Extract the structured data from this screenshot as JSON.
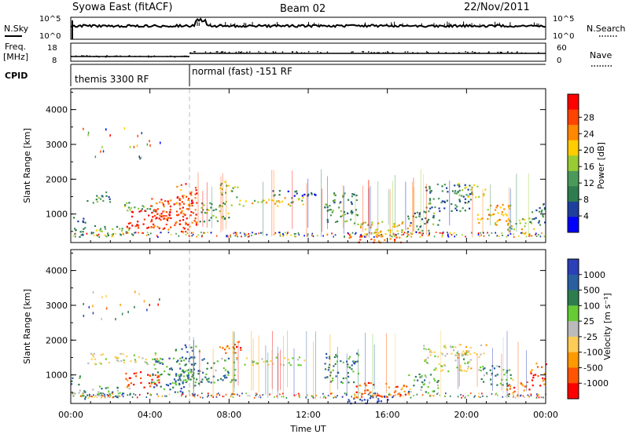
{
  "header": {
    "station": "Syowa East (fitACF)",
    "beam": "Beam 02",
    "date": "22/Nov/2011"
  },
  "top_panel": {
    "left_label": "N.Sky",
    "right_label": "N.Search",
    "left_ticks": [
      "10^5",
      "10^0"
    ],
    "right_ticks": [
      "10^5",
      "10^0"
    ]
  },
  "freq_panel": {
    "left_label_1": "Freq.",
    "left_label_2": "[MHz]",
    "right_label": "Nave",
    "left_ticks": [
      "18",
      "8"
    ],
    "right_ticks": [
      "60",
      "0"
    ]
  },
  "cpid": {
    "label": "CPID",
    "segments": [
      {
        "label": "themis 3300 RF",
        "start_hour": 0,
        "end_hour": 6
      },
      {
        "label": "normal (fast) -151 RF",
        "start_hour": 6,
        "end_hour": 24
      }
    ]
  },
  "colors": {
    "power_scale": [
      "#0000ff",
      "#1e3f9e",
      "#2e7d4f",
      "#4a9a5a",
      "#99cc33",
      "#ffcc00",
      "#ff8800",
      "#ff4400",
      "#ff0000"
    ],
    "velocity_scale": [
      "#2b3fb8",
      "#2a5fa0",
      "#2e7d4f",
      "#66cc33",
      "#bbbbbb",
      "#ffcc55",
      "#ff9900",
      "#ff5500",
      "#ff0000"
    ]
  },
  "chart_data": [
    {
      "type": "heatmap",
      "name": "power",
      "ylabel": "Slant Range [km]",
      "ylim": [
        180,
        4600
      ],
      "yticks": [
        "1000",
        "2000",
        "3000",
        "4000"
      ],
      "colorbar": {
        "label": "Power [dB]",
        "ticks": [
          "4",
          "8",
          "12",
          "16",
          "20",
          "24",
          "28"
        ]
      },
      "regions": [
        {
          "t0": 0.0,
          "t1": 0.7,
          "r0": 300,
          "r1": 1000,
          "level": 0.25
        },
        {
          "t0": 0.8,
          "t1": 2.0,
          "r0": 1300,
          "r1": 1650,
          "level": 0.35
        },
        {
          "t0": 1.0,
          "t1": 3.2,
          "r0": 380,
          "r1": 700,
          "level": 0.4
        },
        {
          "t0": 2.2,
          "t1": 4.2,
          "r0": 1100,
          "r1": 1350,
          "level": 0.4
        },
        {
          "t0": 2.8,
          "t1": 5.0,
          "r0": 600,
          "r1": 1200,
          "level": 0.95
        },
        {
          "t0": 4.0,
          "t1": 6.1,
          "r0": 500,
          "r1": 1500,
          "level": 0.85
        },
        {
          "t0": 5.2,
          "t1": 6.4,
          "r0": 700,
          "r1": 1900,
          "level": 0.8
        },
        {
          "t0": 6.5,
          "t1": 8.2,
          "r0": 800,
          "r1": 1400,
          "level": 0.4
        },
        {
          "t0": 7.5,
          "t1": 8.5,
          "r0": 1500,
          "r1": 1950,
          "level": 0.5
        },
        {
          "t0": 8.3,
          "t1": 11.8,
          "r0": 1250,
          "r1": 1500,
          "level": 0.55
        },
        {
          "t0": 10.0,
          "t1": 12.5,
          "r0": 1500,
          "r1": 1700,
          "level": 0.2
        },
        {
          "t0": 12.8,
          "t1": 14.5,
          "r0": 750,
          "r1": 1650,
          "level": 0.35
        },
        {
          "t0": 14.0,
          "t1": 16.8,
          "r0": 200,
          "r1": 420,
          "level": 0.85
        },
        {
          "t0": 14.3,
          "t1": 17.2,
          "r0": 380,
          "r1": 800,
          "level": 0.6
        },
        {
          "t0": 17.0,
          "t1": 18.6,
          "r0": 500,
          "r1": 1100,
          "level": 0.3
        },
        {
          "t0": 17.8,
          "t1": 20.2,
          "r0": 1100,
          "r1": 1900,
          "level": 0.3
        },
        {
          "t0": 19.5,
          "t1": 21.0,
          "r0": 1500,
          "r1": 1900,
          "level": 0.5
        },
        {
          "t0": 20.5,
          "t1": 22.3,
          "r0": 700,
          "r1": 1300,
          "level": 0.65
        },
        {
          "t0": 22.0,
          "t1": 23.4,
          "r0": 500,
          "r1": 900,
          "level": 0.55
        },
        {
          "t0": 23.2,
          "t1": 24.0,
          "r0": 700,
          "r1": 1400,
          "level": 0.3
        }
      ]
    },
    {
      "type": "heatmap",
      "name": "velocity",
      "ylabel": "Slant Range [km]",
      "xlabel": "Time UT",
      "ylim": [
        180,
        4600
      ],
      "xlim": [
        0,
        24
      ],
      "yticks": [
        "1000",
        "2000",
        "3000",
        "4000"
      ],
      "xticks": [
        "00:00",
        "04:00",
        "08:00",
        "12:00",
        "16:00",
        "20:00",
        "00:00"
      ],
      "colorbar": {
        "label": "Velocity [m s⁻¹]",
        "ticks": [
          "1000",
          "500",
          "100",
          "25",
          "-25",
          "-100",
          "-500",
          "-1000"
        ]
      },
      "regions": [
        {
          "t0": 0.0,
          "t1": 0.8,
          "r0": 300,
          "r1": 1000,
          "level": 0.35
        },
        {
          "t0": 0.8,
          "t1": 2.0,
          "r0": 1300,
          "r1": 1650,
          "level": 0.5
        },
        {
          "t0": 1.0,
          "t1": 3.2,
          "r0": 380,
          "r1": 700,
          "level": 0.35
        },
        {
          "t0": 2.2,
          "t1": 4.5,
          "r0": 1300,
          "r1": 1650,
          "level": 0.5
        },
        {
          "t0": 2.6,
          "t1": 4.5,
          "r0": 650,
          "r1": 1150,
          "level": 0.85
        },
        {
          "t0": 4.0,
          "t1": 6.2,
          "r0": 500,
          "r1": 1500,
          "level": 0.25
        },
        {
          "t0": 5.2,
          "t1": 6.5,
          "r0": 700,
          "r1": 1900,
          "level": 0.25
        },
        {
          "t0": 6.5,
          "t1": 8.3,
          "r0": 800,
          "r1": 1500,
          "level": 0.3
        },
        {
          "t0": 7.5,
          "t1": 8.6,
          "r0": 1500,
          "r1": 2000,
          "level": 0.75
        },
        {
          "t0": 8.3,
          "t1": 11.8,
          "r0": 1300,
          "r1": 1550,
          "level": 0.5
        },
        {
          "t0": 12.8,
          "t1": 14.5,
          "r0": 750,
          "r1": 1650,
          "level": 0.25
        },
        {
          "t0": 14.0,
          "t1": 16.8,
          "r0": 200,
          "r1": 420,
          "level": 0.05
        },
        {
          "t0": 14.3,
          "t1": 17.2,
          "r0": 380,
          "r1": 800,
          "level": 0.8
        },
        {
          "t0": 17.0,
          "t1": 18.6,
          "r0": 500,
          "r1": 1100,
          "level": 0.35
        },
        {
          "t0": 17.8,
          "t1": 20.2,
          "r0": 1100,
          "r1": 1900,
          "level": 0.5
        },
        {
          "t0": 19.5,
          "t1": 21.0,
          "r0": 1500,
          "r1": 1900,
          "level": 0.6
        },
        {
          "t0": 20.5,
          "t1": 22.3,
          "r0": 700,
          "r1": 1300,
          "level": 0.3
        },
        {
          "t0": 22.0,
          "t1": 23.4,
          "r0": 500,
          "r1": 900,
          "level": 0.75
        },
        {
          "t0": 23.2,
          "t1": 24.0,
          "r0": 700,
          "r1": 1400,
          "level": 0.85
        }
      ]
    }
  ]
}
